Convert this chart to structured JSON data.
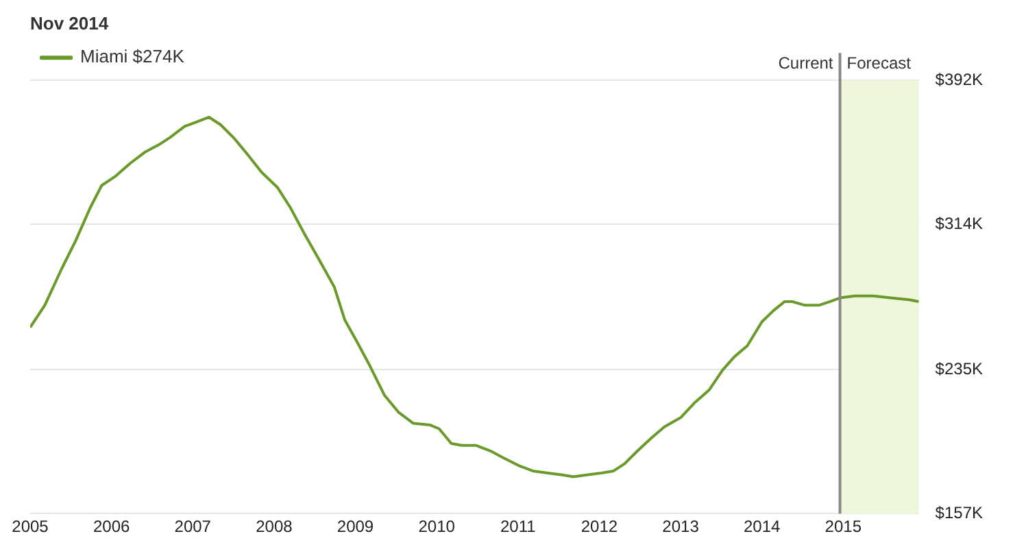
{
  "chart_data": {
    "type": "line",
    "title": "Nov 2014",
    "x": [
      2005.0,
      2005.18,
      2005.39,
      2005.56,
      2005.74,
      2005.88,
      2006.05,
      2006.23,
      2006.41,
      2006.58,
      2006.72,
      2006.9,
      2007.02,
      2007.2,
      2007.34,
      2007.5,
      2007.67,
      2007.85,
      2008.04,
      2008.2,
      2008.37,
      2008.55,
      2008.74,
      2008.87,
      2009.01,
      2009.18,
      2009.36,
      2009.53,
      2009.71,
      2009.92,
      2010.03,
      2010.18,
      2010.31,
      2010.48,
      2010.66,
      2010.83,
      2011.01,
      2011.19,
      2011.36,
      2011.54,
      2011.68,
      2011.85,
      2012.03,
      2012.17,
      2012.31,
      2012.47,
      2012.64,
      2012.8,
      2013.0,
      2013.17,
      2013.35,
      2013.52,
      2013.66,
      2013.82,
      2014.0,
      2014.14,
      2014.28,
      2014.37,
      2014.53,
      2014.7,
      2014.84,
      2014.96,
      2015.14,
      2015.37,
      2015.58,
      2015.81,
      2015.93
    ],
    "series": [
      {
        "name": "Miami $274K",
        "color": "#6a9a2a",
        "values": [
          258,
          270,
          290,
          305,
          323,
          335,
          340,
          347,
          353,
          357,
          361,
          367,
          369,
          372,
          368,
          361,
          352,
          342,
          334,
          323,
          309,
          295,
          280,
          262,
          251,
          237,
          221,
          212,
          206,
          205,
          203,
          195,
          194,
          194,
          191,
          187,
          183,
          180,
          179,
          178,
          177,
          178,
          179,
          180,
          184,
          191,
          198,
          204,
          209,
          217,
          224,
          235,
          242,
          248,
          261,
          267,
          272,
          272,
          270,
          270,
          272,
          274,
          275,
          275,
          274,
          273,
          272
        ]
      }
    ],
    "xlim": [
      2005,
      2015.93
    ],
    "xticks": [
      2005,
      2006,
      2007,
      2008,
      2009,
      2010,
      2011,
      2012,
      2013,
      2014,
      2015
    ],
    "ylim": [
      157,
      392
    ],
    "yticks": [
      {
        "value": 157,
        "label": "$157K"
      },
      {
        "value": 235,
        "label": "$235K"
      },
      {
        "value": 314,
        "label": "$314K"
      },
      {
        "value": 392,
        "label": "$392K"
      }
    ],
    "ref_lines": [
      {
        "axis": "x",
        "value": 2014.96,
        "label": "Current",
        "color": "#888888"
      }
    ],
    "bands": [
      {
        "axis": "x",
        "from": 2014.96,
        "to": 2015.93,
        "label": "Forecast",
        "color": "#eef6dc"
      }
    ],
    "grid": "y",
    "legend": "top left",
    "marker": "none",
    "line_style": "solid"
  }
}
